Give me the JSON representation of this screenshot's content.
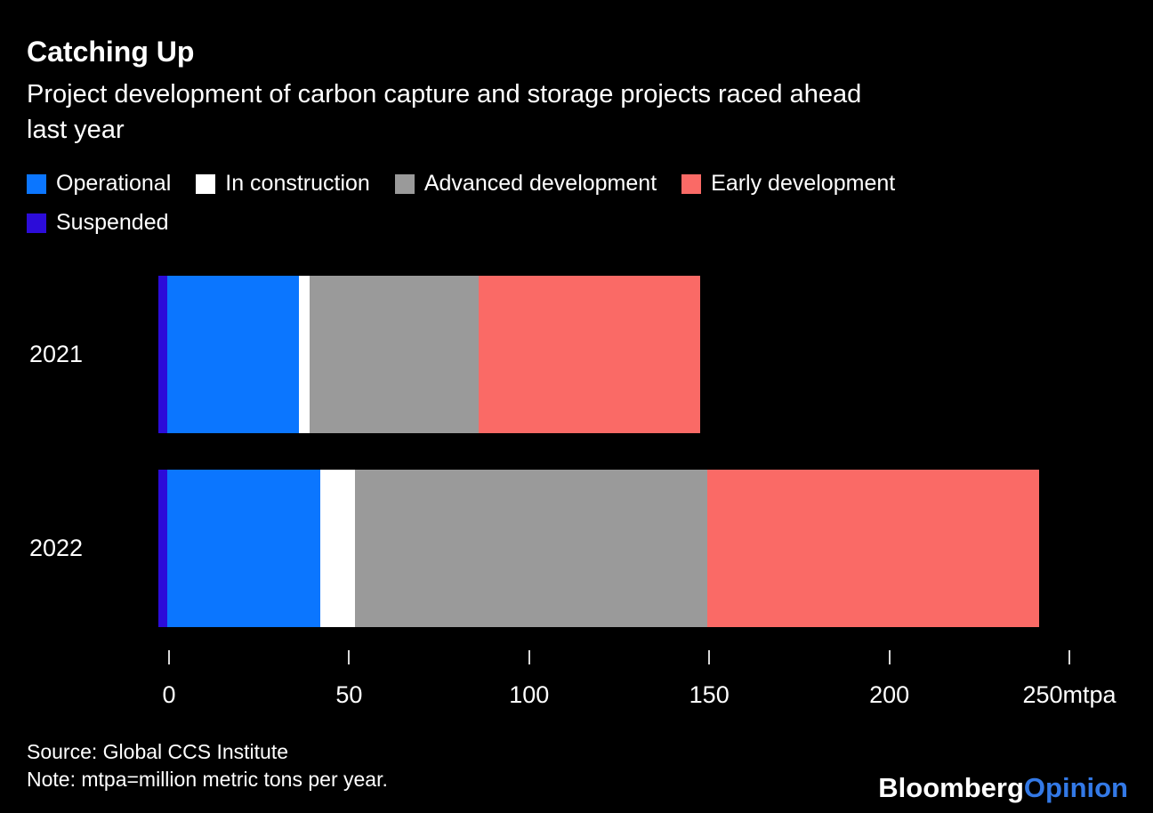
{
  "header": {
    "title": "Catching Up",
    "subtitle": "Project development of carbon capture and storage projects raced ahead\nlast year"
  },
  "legend": [
    {
      "label": "Operational",
      "color": "#0b76ff"
    },
    {
      "label": "In construction",
      "color": "#ffffff"
    },
    {
      "label": "Advanced development",
      "color": "#9a9a9a"
    },
    {
      "label": "Early development",
      "color": "#fa6a66"
    },
    {
      "label": "Suspended",
      "color": "#2c0cd9"
    }
  ],
  "chart_data": {
    "type": "bar",
    "orientation": "horizontal",
    "stacked": true,
    "title": "Catching Up",
    "subtitle": "Project development of carbon capture and storage projects raced ahead last year",
    "categories": [
      "2021",
      "2022"
    ],
    "series": [
      {
        "name": "Suspended",
        "color": "#2c0cd9",
        "values": [
          2.5,
          2.5
        ]
      },
      {
        "name": "Operational",
        "color": "#0b76ff",
        "values": [
          36.5,
          42.5
        ]
      },
      {
        "name": "In construction",
        "color": "#ffffff",
        "values": [
          3,
          9.5
        ]
      },
      {
        "name": "Advanced development",
        "color": "#9a9a9a",
        "values": [
          47,
          98
        ]
      },
      {
        "name": "Early development",
        "color": "#fa6a66",
        "values": [
          61.5,
          92
        ]
      }
    ],
    "totals": [
      150.5,
      244.5
    ],
    "x_ticks": [
      0,
      50,
      100,
      150,
      200,
      250
    ],
    "x_tick_labels": [
      "0",
      "50",
      "100",
      "150",
      "200",
      "250mtpa"
    ],
    "x_unit": "mtpa",
    "xlim": [
      0,
      272
    ],
    "grid": false,
    "legend_position": "top"
  },
  "footer": {
    "source": "Source: Global CCS Institute",
    "note": "Note: mtpa=million metric tons per year."
  },
  "branding": {
    "bloomberg": "Bloomberg",
    "opinion": "Opinion",
    "opinion_color": "#3379e6"
  }
}
